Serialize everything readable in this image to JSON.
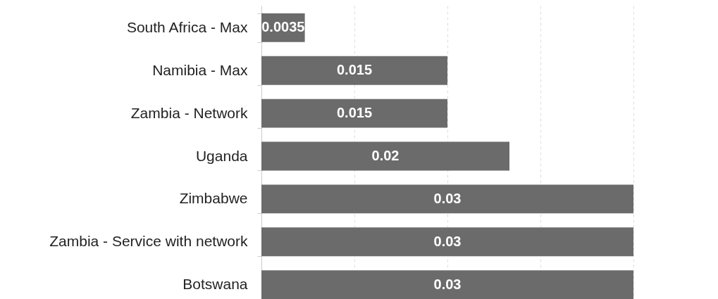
{
  "chart_data": {
    "type": "bar",
    "orientation": "horizontal",
    "categories": [
      "South Africa - Max",
      "Namibia - Max ",
      "Zambia - Network",
      "Uganda",
      "Zimbabwe",
      "Zambia - Service with network",
      "Botswana"
    ],
    "values": [
      0.0035,
      0.015,
      0.015,
      0.02,
      0.03,
      0.03,
      0.03
    ],
    "color": "#6b6b6b",
    "xlim": [
      0,
      0.03
    ],
    "xticks": [
      {
        "value": 0,
        "label": null
      },
      {
        "value": 0.0075,
        "label": null
      },
      {
        "value": 0.015,
        "label": null
      },
      {
        "value": 0.0225,
        "label": null
      },
      {
        "value": 0.03,
        "label": null
      }
    ],
    "grid": "x",
    "tick_labels": "y",
    "data_labels": true
  }
}
